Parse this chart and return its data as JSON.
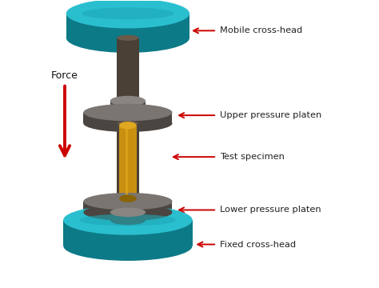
{
  "bg_color": "#ffffff",
  "teal_color": "#1EA8B8",
  "teal_dark": "#0d7a87",
  "teal_light": "#2ABFCF",
  "shaft_color": "#4a4035",
  "shaft_light": "#6a5a4a",
  "platen_top": "#7a7570",
  "platen_side": "#4a4540",
  "platen_hub_top": "#8a8580",
  "gold_color": "#C89010",
  "gold_light": "#E0A820",
  "gold_dark": "#8a6400",
  "arrow_color": "#cc0000",
  "text_color": "#222222",
  "force_text": "Force",
  "labels": [
    "Mobile cross-head",
    "Upper pressure platen",
    "Test specimen",
    "Lower pressure platen",
    "Fixed cross-head"
  ]
}
